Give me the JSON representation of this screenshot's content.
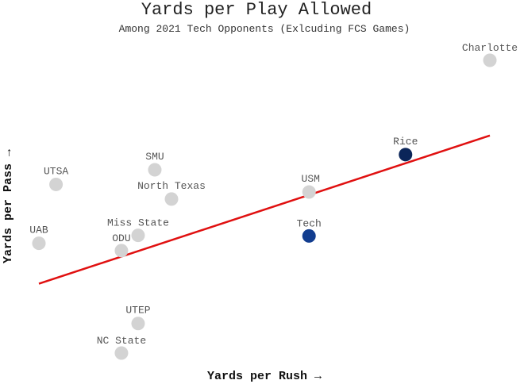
{
  "chart_data": {
    "type": "scatter",
    "title": "Yards per Play Allowed",
    "subtitle": "Among 2021 Tech Opponents (Exlcuding FCS Games)",
    "xlabel": "Yards per Rush →",
    "ylabel": "Yards per Pass →",
    "xlim": [
      0,
      100
    ],
    "ylim": [
      0,
      100
    ],
    "grid": false,
    "legend": "none",
    "points": [
      {
        "label": "Charlotte",
        "x": 100,
        "y": 100,
        "color": "#d3d3d3"
      },
      {
        "label": "Rice",
        "x": 81.3,
        "y": 67.8,
        "color": "#0b2559"
      },
      {
        "label": "SMU",
        "x": 25.7,
        "y": 62.6,
        "color": "#d3d3d3"
      },
      {
        "label": "UTSA",
        "x": 3.8,
        "y": 57.6,
        "color": "#d3d3d3"
      },
      {
        "label": "USM",
        "x": 59.9,
        "y": 55.0,
        "color": "#d3d3d3"
      },
      {
        "label": "North Texas",
        "x": 29.4,
        "y": 52.6,
        "color": "#d3d3d3"
      },
      {
        "label": "Tech",
        "x": 59.9,
        "y": 40.0,
        "color": "#123d8f"
      },
      {
        "label": "Miss State",
        "x": 22.0,
        "y": 40.2,
        "color": "#d3d3d3"
      },
      {
        "label": "UAB",
        "x": 0,
        "y": 37.5,
        "color": "#d3d3d3"
      },
      {
        "label": "ODU",
        "x": 18.3,
        "y": 35.0,
        "color": "#d3d3d3"
      },
      {
        "label": "UTEP",
        "x": 22.0,
        "y": 10.1,
        "color": "#d3d3d3"
      },
      {
        "label": "NC State",
        "x": 18.3,
        "y": 0,
        "color": "#d3d3d3"
      }
    ],
    "trendline": {
      "x": [
        0,
        100
      ],
      "y": [
        23.7,
        74.3
      ],
      "color": "#e01010"
    }
  }
}
